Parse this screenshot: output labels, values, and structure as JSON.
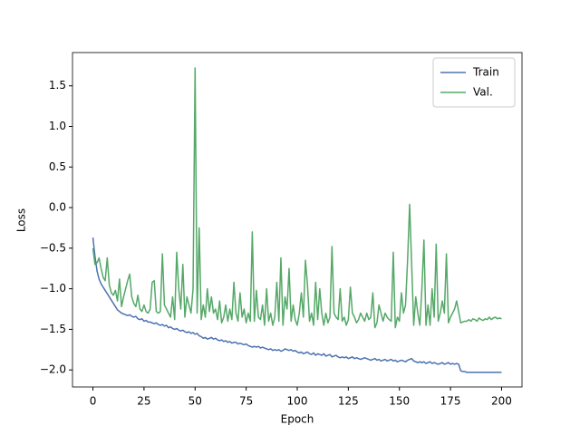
{
  "chart_data": {
    "type": "line",
    "xlabel": "Epoch",
    "ylabel": "Loss",
    "legend": "upper right",
    "grid": false,
    "xlim": [
      -10,
      210
    ],
    "xticks": [
      0,
      25,
      50,
      75,
      100,
      125,
      150,
      175,
      200
    ],
    "ylim": [
      -2.21,
      1.91
    ],
    "yticks": [
      {
        "value": -2.0,
        "label": "−2.0"
      },
      {
        "value": -1.5,
        "label": "−1.5"
      },
      {
        "value": -1.0,
        "label": "−1.0"
      },
      {
        "value": -0.5,
        "label": "−0.5"
      },
      {
        "value": 0.0,
        "label": "0.0"
      },
      0.5,
      {
        "value": 1.0,
        "label": "1.0"
      },
      1.5
    ],
    "x": [
      0,
      1,
      2,
      3,
      4,
      5,
      6,
      7,
      8,
      9,
      10,
      11,
      12,
      13,
      14,
      15,
      16,
      17,
      18,
      19,
      20,
      21,
      22,
      23,
      24,
      25,
      26,
      27,
      28,
      29,
      30,
      31,
      32,
      33,
      34,
      35,
      36,
      37,
      38,
      39,
      40,
      41,
      42,
      43,
      44,
      45,
      46,
      47,
      48,
      49,
      50,
      51,
      52,
      53,
      54,
      55,
      56,
      57,
      58,
      59,
      60,
      61,
      62,
      63,
      64,
      65,
      66,
      67,
      68,
      69,
      70,
      71,
      72,
      73,
      74,
      75,
      76,
      77,
      78,
      79,
      80,
      81,
      82,
      83,
      84,
      85,
      86,
      87,
      88,
      89,
      90,
      91,
      92,
      93,
      94,
      95,
      96,
      97,
      98,
      99,
      100,
      101,
      102,
      103,
      104,
      105,
      106,
      107,
      108,
      109,
      110,
      111,
      112,
      113,
      114,
      115,
      116,
      117,
      118,
      119,
      120,
      121,
      122,
      123,
      124,
      125,
      126,
      127,
      128,
      129,
      130,
      131,
      132,
      133,
      134,
      135,
      136,
      137,
      138,
      139,
      140,
      141,
      142,
      143,
      144,
      145,
      146,
      147,
      148,
      149,
      150,
      151,
      152,
      153,
      154,
      155,
      156,
      157,
      158,
      159,
      160,
      161,
      162,
      163,
      164,
      165,
      166,
      167,
      168,
      169,
      170,
      171,
      172,
      173,
      174,
      175,
      176,
      177,
      178,
      179,
      180,
      181,
      182,
      183,
      184,
      185,
      186,
      187,
      188,
      189,
      190,
      191,
      192,
      193,
      194,
      195,
      196,
      197,
      198,
      199,
      200
    ],
    "series": [
      {
        "name": "Train",
        "color": "#4c72b0",
        "values": [
          -0.37,
          -0.6,
          -0.78,
          -0.88,
          -0.94,
          -0.98,
          -1.02,
          -1.06,
          -1.1,
          -1.14,
          -1.18,
          -1.22,
          -1.26,
          -1.28,
          -1.3,
          -1.31,
          -1.32,
          -1.33,
          -1.32,
          -1.34,
          -1.35,
          -1.34,
          -1.37,
          -1.38,
          -1.37,
          -1.4,
          -1.39,
          -1.41,
          -1.41,
          -1.42,
          -1.43,
          -1.42,
          -1.44,
          -1.45,
          -1.44,
          -1.46,
          -1.45,
          -1.48,
          -1.47,
          -1.49,
          -1.5,
          -1.49,
          -1.51,
          -1.52,
          -1.51,
          -1.53,
          -1.54,
          -1.53,
          -1.55,
          -1.54,
          -1.56,
          -1.55,
          -1.58,
          -1.59,
          -1.61,
          -1.6,
          -1.62,
          -1.61,
          -1.6,
          -1.62,
          -1.61,
          -1.63,
          -1.64,
          -1.63,
          -1.65,
          -1.64,
          -1.66,
          -1.65,
          -1.67,
          -1.66,
          -1.66,
          -1.68,
          -1.67,
          -1.68,
          -1.69,
          -1.68,
          -1.7,
          -1.71,
          -1.72,
          -1.71,
          -1.72,
          -1.71,
          -1.73,
          -1.72,
          -1.73,
          -1.74,
          -1.75,
          -1.74,
          -1.76,
          -1.75,
          -1.76,
          -1.75,
          -1.77,
          -1.76,
          -1.74,
          -1.75,
          -1.76,
          -1.75,
          -1.77,
          -1.76,
          -1.78,
          -1.79,
          -1.78,
          -1.8,
          -1.79,
          -1.78,
          -1.8,
          -1.81,
          -1.79,
          -1.82,
          -1.8,
          -1.81,
          -1.82,
          -1.8,
          -1.83,
          -1.82,
          -1.81,
          -1.84,
          -1.83,
          -1.82,
          -1.84,
          -1.85,
          -1.84,
          -1.85,
          -1.84,
          -1.86,
          -1.85,
          -1.84,
          -1.86,
          -1.85,
          -1.86,
          -1.87,
          -1.86,
          -1.85,
          -1.86,
          -1.87,
          -1.88,
          -1.87,
          -1.86,
          -1.88,
          -1.87,
          -1.89,
          -1.88,
          -1.87,
          -1.89,
          -1.88,
          -1.87,
          -1.89,
          -1.88,
          -1.9,
          -1.89,
          -1.88,
          -1.89,
          -1.9,
          -1.88,
          -1.87,
          -1.86,
          -1.89,
          -1.9,
          -1.91,
          -1.9,
          -1.91,
          -1.9,
          -1.92,
          -1.91,
          -1.9,
          -1.92,
          -1.91,
          -1.92,
          -1.93,
          -1.92,
          -1.91,
          -1.93,
          -1.92,
          -1.91,
          -1.93,
          -1.92,
          -1.93,
          -1.92,
          -1.93,
          -2.01,
          -2.02,
          -2.02,
          -2.03,
          -2.03,
          -2.03,
          -2.03,
          -2.03,
          -2.03,
          -2.03,
          -2.03,
          -2.03,
          -2.03,
          -2.03,
          -2.03,
          -2.03,
          -2.03,
          -2.03,
          -2.03,
          -2.03,
          -2.03
        ]
      },
      {
        "name": "Val.",
        "color": "#55a868",
        "values": [
          -0.5,
          -0.7,
          -0.68,
          -0.62,
          -0.75,
          -0.86,
          -0.9,
          -0.62,
          -0.95,
          -1.05,
          -1.08,
          -1.02,
          -1.15,
          -0.88,
          -1.22,
          -1.1,
          -1.0,
          -0.9,
          -0.82,
          -1.1,
          -1.18,
          -1.22,
          -1.08,
          -1.25,
          -1.28,
          -1.2,
          -1.28,
          -1.3,
          -1.25,
          -0.92,
          -0.9,
          -1.28,
          -1.3,
          -1.28,
          -0.57,
          -1.2,
          -1.25,
          -1.3,
          -1.35,
          -1.1,
          -1.38,
          -0.55,
          -1.0,
          -1.25,
          -0.7,
          -1.35,
          -1.1,
          -1.2,
          -1.3,
          -1.0,
          1.72,
          -1.3,
          -0.25,
          -1.38,
          -1.2,
          -1.35,
          -1.0,
          -1.28,
          -1.1,
          -1.3,
          -1.25,
          -1.38,
          -1.15,
          -1.42,
          -1.35,
          -1.2,
          -1.4,
          -1.25,
          -1.38,
          -0.92,
          -1.3,
          -1.4,
          -1.05,
          -1.35,
          -1.25,
          -1.42,
          -1.3,
          -1.4,
          -0.3,
          -1.4,
          -1.02,
          -1.35,
          -1.38,
          -1.2,
          -1.45,
          -1.0,
          -1.4,
          -1.3,
          -1.45,
          -1.35,
          -0.92,
          -1.4,
          -0.62,
          -1.45,
          -1.1,
          -1.25,
          -0.75,
          -1.4,
          -1.2,
          -1.38,
          -1.45,
          -1.3,
          -1.05,
          -1.35,
          -0.65,
          -0.95,
          -1.4,
          -1.3,
          -1.45,
          -0.92,
          -1.38,
          -1.0,
          -1.3,
          -1.45,
          -1.3,
          -1.42,
          -1.35,
          -0.48,
          -1.3,
          -1.35,
          -1.38,
          -1.0,
          -1.4,
          -1.35,
          -1.45,
          -1.38,
          -0.98,
          -1.3,
          -1.35,
          -1.42,
          -1.38,
          -1.3,
          -1.35,
          -1.4,
          -1.3,
          -1.38,
          -1.35,
          -1.05,
          -1.48,
          -1.42,
          -1.2,
          -1.3,
          -1.4,
          -1.3,
          -1.35,
          -1.38,
          -1.4,
          -0.55,
          -1.48,
          -1.35,
          -1.4,
          -1.05,
          -1.3,
          -1.2,
          -0.65,
          0.04,
          -0.7,
          -1.45,
          -1.1,
          -1.3,
          -1.45,
          -1.0,
          -0.4,
          -1.45,
          -1.2,
          -1.45,
          -1.0,
          -1.35,
          -0.45,
          -1.4,
          -1.3,
          -1.15,
          -1.3,
          -0.57,
          -1.42,
          -1.35,
          -1.3,
          -1.25,
          -1.15,
          -1.28,
          -1.42,
          -1.41,
          -1.4,
          -1.4,
          -1.38,
          -1.4,
          -1.37,
          -1.38,
          -1.4,
          -1.36,
          -1.38,
          -1.39,
          -1.37,
          -1.38,
          -1.35,
          -1.38,
          -1.36,
          -1.35,
          -1.37,
          -1.36,
          -1.37
        ]
      }
    ]
  }
}
